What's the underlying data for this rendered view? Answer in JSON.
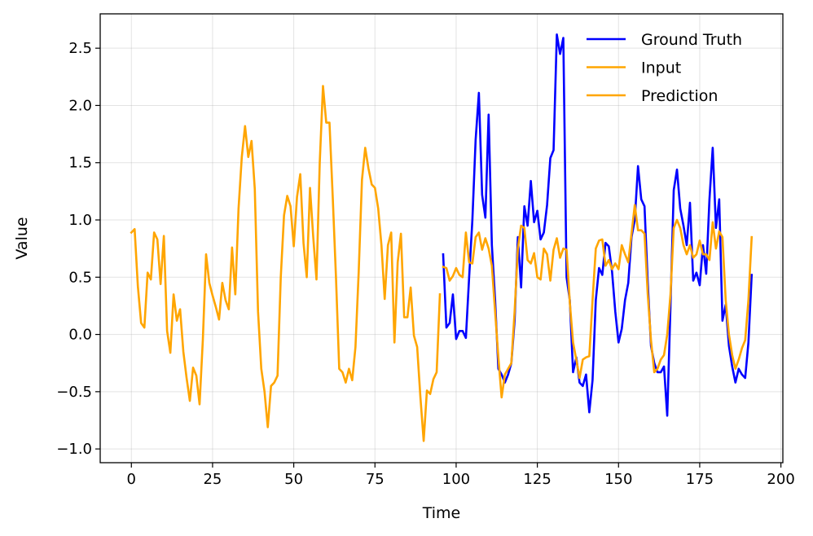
{
  "chart_data": {
    "type": "line",
    "title": "",
    "xlabel": "Time",
    "ylabel": "Value",
    "xlim": [
      -9.6,
      200.6
    ],
    "ylim": [
      -1.12,
      2.8
    ],
    "xticks": [
      0,
      25,
      50,
      75,
      100,
      125,
      150,
      175,
      200
    ],
    "yticks": [
      -1.0,
      -0.5,
      0.0,
      0.5,
      1.0,
      1.5,
      2.0,
      2.5
    ],
    "grid": true,
    "legend_position": "top-right",
    "series": [
      {
        "name": "Ground Truth",
        "color": "#0000ff",
        "x_start": 96,
        "values": [
          0.7,
          0.06,
          0.1,
          0.35,
          -0.04,
          0.03,
          0.03,
          -0.03,
          0.5,
          1.0,
          1.7,
          2.11,
          1.22,
          1.02,
          1.92,
          0.78,
          0.3,
          -0.3,
          -0.35,
          -0.42,
          -0.35,
          -0.25,
          0.12,
          0.85,
          0.41,
          1.12,
          0.95,
          1.34,
          0.98,
          1.08,
          0.83,
          0.89,
          1.13,
          1.54,
          1.61,
          2.62,
          2.45,
          2.59,
          0.5,
          0.3,
          -0.33,
          -0.2,
          -0.42,
          -0.45,
          -0.35,
          -0.68,
          -0.4,
          0.3,
          0.58,
          0.52,
          0.8,
          0.77,
          0.55,
          0.2,
          -0.07,
          0.05,
          0.3,
          0.45,
          0.85,
          1.0,
          1.47,
          1.18,
          1.12,
          0.45,
          -0.1,
          -0.25,
          -0.33,
          -0.33,
          -0.28,
          -0.71,
          0.25,
          1.26,
          1.44,
          1.1,
          0.95,
          0.78,
          1.15,
          0.47,
          0.54,
          0.43,
          0.78,
          0.53,
          1.18,
          1.63,
          0.93,
          1.18,
          0.12,
          0.26,
          -0.1,
          -0.28,
          -0.42,
          -0.3,
          -0.35,
          -0.38,
          -0.07,
          0.52
        ]
      },
      {
        "name": "Input",
        "color": "#ffa500",
        "x_start": 0,
        "values": [
          0.89,
          0.92,
          0.42,
          0.1,
          0.06,
          0.54,
          0.48,
          0.89,
          0.83,
          0.44,
          0.86,
          0.03,
          -0.16,
          0.35,
          0.12,
          0.22,
          -0.15,
          -0.38,
          -0.58,
          -0.29,
          -0.36,
          -0.61,
          -0.05,
          0.7,
          0.45,
          0.34,
          0.24,
          0.13,
          0.45,
          0.3,
          0.22,
          0.76,
          0.35,
          1.1,
          1.55,
          1.82,
          1.55,
          1.69,
          1.27,
          0.2,
          -0.3,
          -0.5,
          -0.81,
          -0.45,
          -0.42,
          -0.36,
          0.5,
          1.04,
          1.21,
          1.12,
          0.77,
          1.2,
          1.4,
          0.8,
          0.5,
          1.28,
          0.85,
          0.48,
          1.5,
          2.17,
          1.85,
          1.85,
          1.2,
          0.5,
          -0.3,
          -0.33,
          -0.42,
          -0.3,
          -0.4,
          -0.11,
          0.55,
          1.35,
          1.63,
          1.45,
          1.31,
          1.28,
          1.1,
          0.78,
          0.31,
          0.78,
          0.89,
          -0.07,
          0.63,
          0.88,
          0.15,
          0.15,
          0.41,
          -0.01,
          -0.11,
          -0.55,
          -0.93,
          -0.49,
          -0.52,
          -0.39,
          -0.33,
          0.35
        ]
      },
      {
        "name": "Prediction",
        "color": "#ffa500",
        "x_start": 96,
        "values": [
          0.59,
          0.58,
          0.47,
          0.51,
          0.58,
          0.52,
          0.5,
          0.89,
          0.63,
          0.62,
          0.85,
          0.89,
          0.74,
          0.84,
          0.75,
          0.6,
          0.2,
          -0.2,
          -0.55,
          -0.35,
          -0.3,
          -0.25,
          0.2,
          0.75,
          0.95,
          0.93,
          0.65,
          0.62,
          0.71,
          0.5,
          0.48,
          0.75,
          0.7,
          0.47,
          0.74,
          0.84,
          0.67,
          0.75,
          0.74,
          0.28,
          -0.07,
          -0.22,
          -0.38,
          -0.22,
          -0.2,
          -0.19,
          0.3,
          0.75,
          0.82,
          0.83,
          0.6,
          0.65,
          0.57,
          0.62,
          0.57,
          0.78,
          0.7,
          0.63,
          0.88,
          1.13,
          0.91,
          0.91,
          0.88,
          0.35,
          -0.05,
          -0.33,
          -0.3,
          -0.22,
          -0.18,
          0.0,
          0.35,
          0.93,
          1.0,
          0.93,
          0.78,
          0.7,
          0.78,
          0.67,
          0.7,
          0.82,
          0.7,
          0.7,
          0.65,
          0.98,
          0.75,
          0.9,
          0.85,
          0.3,
          0.0,
          -0.18,
          -0.3,
          -0.22,
          -0.12,
          -0.05,
          0.3,
          0.85
        ]
      }
    ]
  }
}
